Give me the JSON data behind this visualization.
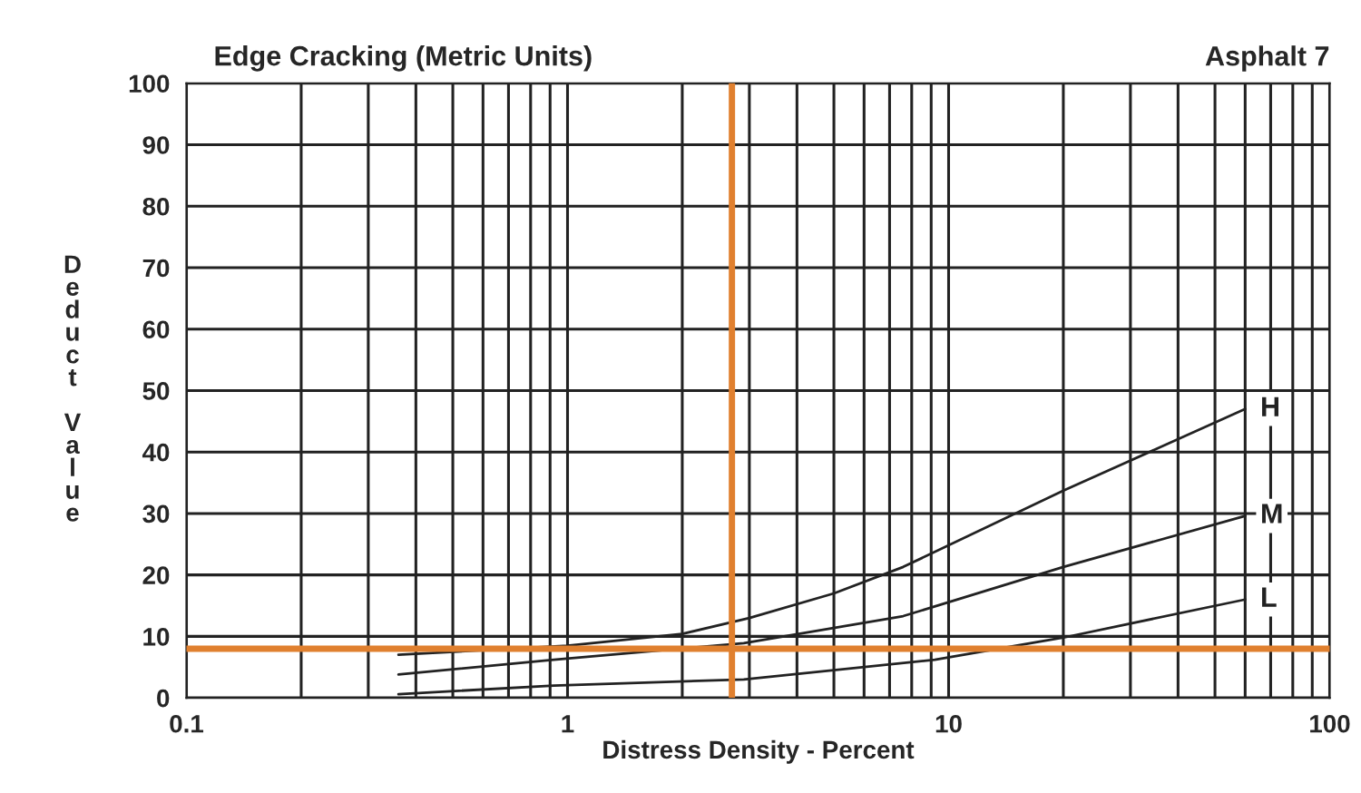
{
  "chart_data": {
    "type": "line",
    "title": "Edge Cracking (Metric Units)",
    "annotations": [
      "Asphalt 7"
    ],
    "xlabel": "Distress Density - Percent",
    "ylabel": "Deduct Value",
    "log": "x",
    "xlim": [
      0.1,
      100
    ],
    "xticks": [
      0.1,
      1,
      10,
      100
    ],
    "ylim": [
      0,
      100
    ],
    "yticks": [
      0,
      10,
      20,
      30,
      40,
      50,
      60,
      70,
      80,
      90,
      100
    ],
    "grid": true,
    "marker": "none",
    "line_style": "solid",
    "series": [
      {
        "name": "H",
        "color": "#222222",
        "x": [
          0.36,
          1,
          2,
          3,
          5,
          7.6,
          20,
          60
        ],
        "values": [
          7,
          8.5,
          10.4,
          13,
          17,
          21.3,
          33.7,
          47
        ]
      },
      {
        "name": "M",
        "color": "#222222",
        "x": [
          0.36,
          0.92,
          2.9,
          7.6,
          20,
          60
        ],
        "values": [
          3.8,
          6.2,
          8.9,
          13.3,
          21.3,
          29.6
        ]
      },
      {
        "name": "L",
        "color": "#222222",
        "x": [
          0.36,
          0.92,
          2.9,
          9.2,
          20,
          60
        ],
        "values": [
          0.6,
          2,
          3,
          6.2,
          9.8,
          16
        ]
      }
    ],
    "ref_lines": [
      {
        "axis": "x",
        "value": 2.7,
        "color": "#e0802f"
      },
      {
        "axis": "y",
        "value": 8,
        "color": "#e0802f"
      }
    ]
  }
}
